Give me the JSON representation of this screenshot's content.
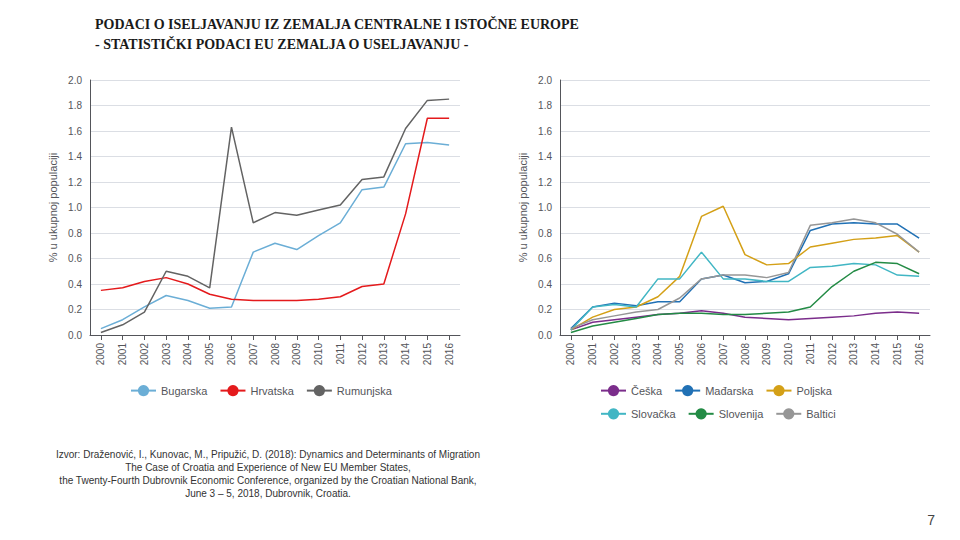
{
  "title": "PODACI O ISELJAVANJU IZ ZEMALJA CENTRALNE I ISTOČNE EUROPE",
  "subtitle": "- STATISTIČKI PODACI EU ZEMALJA O USELJAVANJU -",
  "annotations": [
    "Izvor: Draženović, I., Kunovac, M., Pripužić, D. (2018): Dynamics and Determinants of Migration",
    "The Case of Croatia and Experience of New EU Member States,",
    "the Twenty-Fourth Dubrovnik Economic Conference, organized by the Croatian National Bank,",
    "June 3 – 5, 2018, Dubrovnik, Croatia.",
    "7"
  ],
  "chart_data": [
    {
      "type": "line",
      "x": [
        2000,
        2001,
        2002,
        2003,
        2004,
        2005,
        2006,
        2007,
        2008,
        2009,
        2010,
        2011,
        2012,
        2013,
        2014,
        2015,
        2016
      ],
      "xlim": [
        1999.5,
        2016.5
      ],
      "xticks": [
        2000,
        2001,
        2002,
        2003,
        2004,
        2005,
        2006,
        2007,
        2008,
        2009,
        2010,
        2011,
        2012,
        2013,
        2014,
        2015,
        2016
      ],
      "ylabel": "% u ukupnoj populaciji",
      "ylim": [
        0.0,
        2.0
      ],
      "yticks": [
        {
          "value": 0.0,
          "label": "0.0"
        },
        {
          "value": 0.2,
          "label": "0.2"
        },
        {
          "value": 0.4,
          "label": "0.4"
        },
        {
          "value": 0.6,
          "label": "0.6"
        },
        {
          "value": 0.8,
          "label": "0.8"
        },
        {
          "value": 1.0,
          "label": "1.0"
        },
        {
          "value": 1.2,
          "label": "1.2"
        },
        {
          "value": 1.4,
          "label": "1.4"
        },
        {
          "value": 1.6,
          "label": "1.6"
        },
        {
          "value": 1.8,
          "label": "1.8"
        },
        {
          "value": 2.0,
          "label": "2.0"
        }
      ],
      "grid": true,
      "legend": "bottom",
      "series": [
        {
          "name": "Bugarska",
          "color": "#6baed6",
          "values": [
            0.05,
            0.12,
            0.22,
            0.31,
            0.27,
            0.21,
            0.22,
            0.65,
            0.72,
            0.67,
            0.78,
            0.88,
            1.14,
            1.16,
            1.5,
            1.51,
            1.49
          ]
        },
        {
          "name": "Hrvatska",
          "color": "#e41a1c",
          "values": [
            0.35,
            0.37,
            0.42,
            0.45,
            0.4,
            0.32,
            0.28,
            0.27,
            0.27,
            0.27,
            0.28,
            0.3,
            0.38,
            0.4,
            0.95,
            1.7,
            1.7
          ]
        },
        {
          "name": "Rumunjska",
          "color": "#636363",
          "values": [
            0.02,
            0.08,
            0.18,
            0.5,
            0.46,
            0.37,
            1.63,
            0.88,
            0.96,
            0.94,
            0.98,
            1.02,
            1.22,
            1.24,
            1.62,
            1.84,
            1.85
          ]
        }
      ]
    },
    {
      "type": "line",
      "x": [
        2000,
        2001,
        2002,
        2003,
        2004,
        2005,
        2006,
        2007,
        2008,
        2009,
        2010,
        2011,
        2012,
        2013,
        2014,
        2015,
        2016
      ],
      "xlim": [
        1999.5,
        2016.5
      ],
      "xticks": [
        2000,
        2001,
        2002,
        2003,
        2004,
        2005,
        2006,
        2007,
        2008,
        2009,
        2010,
        2011,
        2012,
        2013,
        2014,
        2015,
        2016
      ],
      "ylabel": "% u ukupnoj populaciji",
      "ylim": [
        0.0,
        2.0
      ],
      "yticks": [
        {
          "value": 0.0,
          "label": "0.0"
        },
        {
          "value": 0.2,
          "label": "0.2"
        },
        {
          "value": 0.4,
          "label": "0.4"
        },
        {
          "value": 0.6,
          "label": "0.6"
        },
        {
          "value": 0.8,
          "label": "0.8"
        },
        {
          "value": 1.0,
          "label": "1.0"
        },
        {
          "value": 1.2,
          "label": "1.2"
        },
        {
          "value": 1.4,
          "label": "1.4"
        },
        {
          "value": 1.6,
          "label": "1.6"
        },
        {
          "value": 1.8,
          "label": "1.8"
        },
        {
          "value": 2.0,
          "label": "2.0"
        }
      ],
      "grid": true,
      "legend": "bottom",
      "series": [
        {
          "name": "Češka",
          "color": "#7b2d8b",
          "values": [
            0.04,
            0.1,
            0.12,
            0.14,
            0.16,
            0.17,
            0.19,
            0.17,
            0.14,
            0.13,
            0.12,
            0.13,
            0.14,
            0.15,
            0.17,
            0.18,
            0.17
          ]
        },
        {
          "name": "Mađarska",
          "color": "#2171b5",
          "values": [
            0.05,
            0.22,
            0.25,
            0.23,
            0.26,
            0.26,
            0.44,
            0.47,
            0.41,
            0.42,
            0.48,
            0.82,
            0.87,
            0.88,
            0.87,
            0.87,
            0.76
          ]
        },
        {
          "name": "Poljska",
          "color": "#d4a017",
          "values": [
            0.04,
            0.14,
            0.2,
            0.22,
            0.3,
            0.46,
            0.93,
            1.01,
            0.63,
            0.55,
            0.56,
            0.69,
            0.72,
            0.75,
            0.76,
            0.78,
            0.65
          ]
        },
        {
          "name": "Slovačka",
          "color": "#41b6c4",
          "values": [
            0.04,
            0.22,
            0.24,
            0.22,
            0.44,
            0.44,
            0.65,
            0.44,
            0.44,
            0.42,
            0.42,
            0.53,
            0.54,
            0.56,
            0.55,
            0.47,
            0.46
          ]
        },
        {
          "name": "Slovenija",
          "color": "#238b45",
          "values": [
            0.02,
            0.07,
            0.1,
            0.13,
            0.16,
            0.17,
            0.17,
            0.16,
            0.16,
            0.17,
            0.18,
            0.22,
            0.38,
            0.5,
            0.57,
            0.56,
            0.48
          ]
        },
        {
          "name": "Baltici",
          "color": "#969696",
          "values": [
            0.05,
            0.12,
            0.15,
            0.18,
            0.2,
            0.29,
            0.44,
            0.47,
            0.47,
            0.45,
            0.49,
            0.86,
            0.88,
            0.91,
            0.88,
            0.79,
            0.65
          ]
        }
      ]
    }
  ]
}
